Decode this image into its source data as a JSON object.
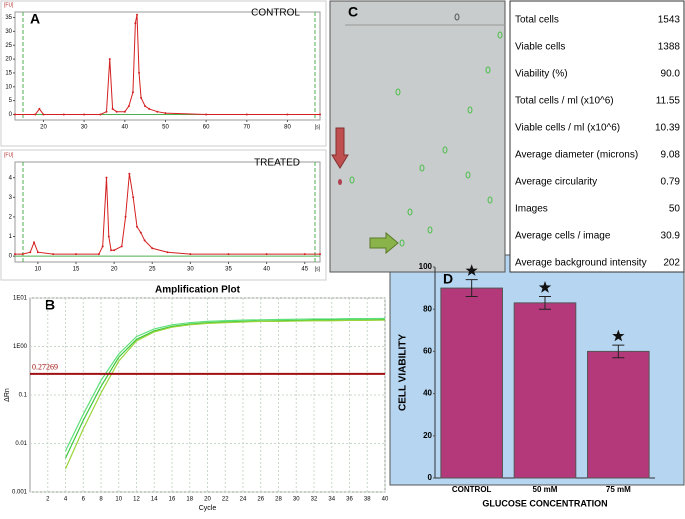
{
  "chart_data": [
    {
      "type": "line",
      "panel_label": "A",
      "annotation": "CONTROL",
      "x_unit": "[s]",
      "y_unit": "[FU]",
      "x": [
        13,
        18,
        19,
        20,
        25,
        30,
        34,
        35.5,
        36.3,
        37,
        38,
        40,
        41,
        42,
        42.6,
        43,
        43.5,
        44,
        45,
        46,
        48,
        50,
        60,
        70,
        80,
        88
      ],
      "values": [
        0,
        0,
        2,
        0,
        0,
        0,
        0,
        1,
        20,
        2,
        1,
        1,
        3,
        8,
        33,
        36,
        15,
        6,
        3,
        2,
        1,
        0.5,
        0,
        0,
        0,
        0
      ],
      "color": "#d42020",
      "xlim": [
        13,
        88
      ],
      "xticks": [
        20,
        30,
        40,
        50,
        60,
        70,
        80
      ],
      "ylim": [
        -2,
        37
      ],
      "yticks": [
        0,
        5,
        10,
        15,
        20,
        25,
        30,
        35
      ]
    },
    {
      "type": "line",
      "annotation": "TREATED",
      "x_unit": "[s]",
      "y_unit": "[FU]",
      "x": [
        7,
        8,
        9,
        9.5,
        10,
        12,
        15,
        18,
        18.5,
        19,
        19.3,
        19.6,
        20,
        21,
        21.5,
        22,
        22.5,
        23,
        23.5,
        24,
        25,
        27,
        30,
        35,
        40,
        45,
        47
      ],
      "values": [
        0.1,
        0.1,
        0.2,
        0.7,
        0.2,
        0.1,
        0.1,
        0.1,
        0.5,
        4,
        1,
        0.3,
        0.3,
        0.5,
        2,
        4.2,
        3,
        1.5,
        1.2,
        0.8,
        0.4,
        0.2,
        0.1,
        0.1,
        0.1,
        0.1,
        0.1
      ],
      "color": "#d42020",
      "xlim": [
        7,
        47
      ],
      "xticks": [
        10,
        15,
        20,
        25,
        30,
        35,
        40,
        45
      ],
      "ylim": [
        -0.3,
        4.8
      ],
      "yticks": [
        0,
        1,
        2,
        3,
        4
      ]
    },
    {
      "type": "line",
      "panel_label": "B",
      "title": "Amplification Plot",
      "xlabel": "Cycle",
      "ylabel": "ΔRn",
      "log_y": true,
      "grid": true,
      "threshold": 0.27269,
      "threshold_color": "#a01010",
      "x": [
        4,
        6,
        8,
        10,
        12,
        14,
        16,
        18,
        20,
        22,
        24,
        26,
        28,
        30,
        32,
        34,
        36,
        38,
        40
      ],
      "series": [
        {
          "color": "#3cc83c",
          "values": [
            0.005,
            0.03,
            0.15,
            0.6,
            1.4,
            2.1,
            2.6,
            2.9,
            3.1,
            3.2,
            3.3,
            3.35,
            3.4,
            3.45,
            3.5,
            3.5,
            3.55,
            3.55,
            3.6
          ]
        },
        {
          "color": "#9ad43a",
          "values": [
            0.003,
            0.02,
            0.11,
            0.5,
            1.3,
            2.0,
            2.5,
            2.8,
            3.0,
            3.1,
            3.2,
            3.3,
            3.3,
            3.35,
            3.4,
            3.4,
            3.45,
            3.45,
            3.5
          ]
        },
        {
          "color": "#5ee07a",
          "values": [
            0.007,
            0.04,
            0.2,
            0.7,
            1.6,
            2.3,
            2.8,
            3.1,
            3.3,
            3.4,
            3.5,
            3.55,
            3.6,
            3.65,
            3.7,
            3.7,
            3.75,
            3.75,
            3.8
          ]
        }
      ],
      "xlim": [
        0,
        40
      ],
      "xticks": [
        2,
        4,
        6,
        8,
        10,
        12,
        14,
        16,
        18,
        20,
        22,
        24,
        26,
        28,
        30,
        32,
        34,
        36,
        38,
        40
      ],
      "ylim": [
        0.001,
        10
      ],
      "yticks": [
        0.001,
        0.01,
        0.1,
        {
          "value": 1,
          "label": "1E00"
        },
        {
          "value": 10,
          "label": "1E01"
        }
      ]
    },
    {
      "type": "bar",
      "panel_label": "D",
      "xlabel": "GLUCOSE CONCENTRATION",
      "ylabel": "CELL VIABILITY",
      "categories": [
        "CONTROL",
        "50 mM",
        "75 mM"
      ],
      "values": [
        90,
        83,
        60
      ],
      "errors": [
        4,
        3,
        3
      ],
      "color": "#b3397a",
      "background": "#b5d5f0",
      "ylim": [
        0,
        100
      ],
      "yticks": [
        0,
        20,
        40,
        60,
        80,
        100
      ]
    }
  ],
  "image_panel": {
    "label": "C"
  },
  "table": {
    "rows": [
      [
        "Total cells",
        "1543"
      ],
      [
        "Viable cells",
        "1388"
      ],
      [
        "Viability (%)",
        "90.0"
      ],
      [
        "Total cells / ml (x10^6)",
        "11.55"
      ],
      [
        "Viable cells / ml (x10^6)",
        "10.39"
      ],
      [
        "Average diameter (microns)",
        "9.08"
      ],
      [
        "Average circularity",
        "0.79"
      ],
      [
        "Images",
        "50"
      ],
      [
        "Average cells / image",
        "30.9"
      ],
      [
        "Average background intensity",
        "202"
      ]
    ]
  }
}
